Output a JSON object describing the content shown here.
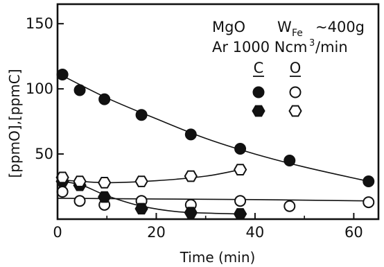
{
  "chart_data": {
    "type": "scatter",
    "xlabel": "Time (min)",
    "ylabel": "[ppmO],[ppmC]",
    "xlim": [
      0,
      65
    ],
    "ylim": [
      0,
      165
    ],
    "x_ticks": [
      0,
      20,
      40,
      60
    ],
    "y_ticks": [
      50,
      100,
      150
    ],
    "grid": false,
    "annotations": {
      "line1_a": "MgO",
      "line1_w": "W",
      "line1_w_sub": "Fe",
      "line1_mass": "~400g",
      "line2_a": "Ar 1000 Ncm",
      "line2_sup": "3",
      "line2_b": "/min"
    },
    "legend": {
      "placement": "top-right",
      "col_c": "C",
      "col_o": "O",
      "rows": [
        {
          "marker": "circle"
        },
        {
          "marker": "hexagon"
        }
      ]
    },
    "series": [
      {
        "element": "C",
        "marker": "circle",
        "filled": true,
        "points": [
          [
            1,
            111
          ],
          [
            4.5,
            99
          ],
          [
            9.5,
            92
          ],
          [
            17,
            80
          ],
          [
            27,
            65
          ],
          [
            37,
            54
          ],
          [
            47,
            45
          ],
          [
            63,
            29
          ]
        ]
      },
      {
        "element": "O",
        "marker": "circle",
        "filled": false,
        "points": [
          [
            1,
            21
          ],
          [
            4.5,
            14
          ],
          [
            9.5,
            11
          ],
          [
            17,
            14
          ],
          [
            27,
            11
          ],
          [
            37,
            14
          ],
          [
            47,
            10
          ],
          [
            63,
            13
          ]
        ]
      },
      {
        "element": "C",
        "marker": "hexagon",
        "filled": true,
        "points": [
          [
            1,
            29
          ],
          [
            4.5,
            26
          ],
          [
            9.5,
            17
          ],
          [
            17,
            8
          ],
          [
            27,
            5
          ],
          [
            37,
            4
          ]
        ]
      },
      {
        "element": "O",
        "marker": "hexagon",
        "filled": false,
        "points": [
          [
            1,
            32
          ],
          [
            4.5,
            29
          ],
          [
            9.5,
            28
          ],
          [
            17,
            29
          ],
          [
            27,
            33
          ],
          [
            37,
            38
          ]
        ]
      }
    ],
    "trend_curves": [
      {
        "element": "C",
        "marker": "circle",
        "points": [
          [
            0,
            112
          ],
          [
            10,
            93
          ],
          [
            20,
            77
          ],
          [
            30,
            62
          ],
          [
            40,
            50
          ],
          [
            50,
            40
          ],
          [
            63,
            29
          ]
        ]
      },
      {
        "element": "O",
        "marker": "circle",
        "points": [
          [
            0,
            16
          ],
          [
            20,
            15.5
          ],
          [
            40,
            15
          ],
          [
            63,
            14
          ]
        ]
      },
      {
        "element": "C",
        "marker": "hexagon",
        "points": [
          [
            1,
            29
          ],
          [
            5,
            26
          ],
          [
            10,
            18
          ],
          [
            17,
            10
          ],
          [
            25,
            5.5
          ],
          [
            37,
            4
          ]
        ]
      },
      {
        "element": "O",
        "marker": "hexagon",
        "points": [
          [
            1,
            30
          ],
          [
            10,
            28
          ],
          [
            20,
            29.5
          ],
          [
            30,
            33
          ],
          [
            37,
            38
          ]
        ]
      }
    ]
  }
}
